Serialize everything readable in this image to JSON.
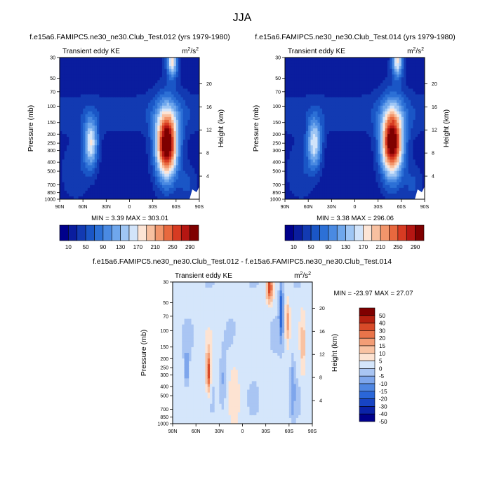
{
  "figure": {
    "title": "JJA"
  },
  "panels": [
    {
      "title": "f.e15a6.FAMIPC5.ne30_ne30.Club_Test.012 (yrs 1979-1980)",
      "subtitle": "Transient eddy KE",
      "units_base": "m",
      "units_exp1": "2",
      "units_mid": "/s",
      "units_exp2": "2",
      "ylabel": "Pressure (mb)",
      "ylabel_right": "Height (km)",
      "stats": "MIN =  3.39  MAX = 303.01"
    },
    {
      "title": "f.e15a6.FAMIPC5.ne30_ne30.Club_Test.014 (yrs 1979-1980)",
      "subtitle": "Transient eddy KE",
      "units_base": "m",
      "units_exp1": "2",
      "units_mid": "/s",
      "units_exp2": "2",
      "ylabel": "Pressure (mb)",
      "ylabel_right": "Height (km)",
      "stats": "MIN =  3.38  MAX = 296.06"
    },
    {
      "title": "f.e15a6.FAMIPC5.ne30_ne30.Club_Test.012 - f.e15a6.FAMIPC5.ne30_ne30.Club_Test.014",
      "subtitle": "Transient eddy KE",
      "units_base": "m",
      "units_exp1": "2",
      "units_mid": "/s",
      "units_exp2": "2",
      "ylabel": "Pressure (mb)",
      "ylabel_right": "Height (km)",
      "stats": "MIN = -23.97  MAX =  27.07"
    }
  ],
  "chart_data": [
    {
      "type": "heatmap",
      "title": "f.e15a6.FAMIPC5.ne30_ne30.Club_Test.012 (yrs 1979-1980)",
      "x_ticks": [
        "90N",
        "60N",
        "30N",
        "0",
        "30S",
        "60S",
        "90S"
      ],
      "y_ticks": [
        "30",
        "50",
        "70",
        "100",
        "150",
        "200",
        "250",
        "300",
        "400",
        "500",
        "700",
        "850",
        "1000"
      ],
      "y_ticks_right": [
        "20",
        "16",
        "12",
        "8",
        "4"
      ],
      "xlabel": "",
      "ylabel": "Pressure (mb)",
      "ylabel_right": "Height (km)",
      "ylim": [
        1000,
        30
      ],
      "log_y": true,
      "min": 3.39,
      "max": 303.01,
      "features": [
        {
          "lat": 50,
          "p": 250,
          "peak": 150,
          "sx": 9,
          "sy": 0.17
        },
        {
          "lat": -48,
          "p": 270,
          "peak": 303,
          "sx": 14,
          "sy": 0.23
        },
        {
          "lat": -55,
          "p": 32,
          "peak": 165,
          "sx": 7,
          "sy": 0.12
        }
      ]
    },
    {
      "type": "heatmap",
      "title": "f.e15a6.FAMIPC5.ne30_ne30.Club_Test.014 (yrs 1979-1980)",
      "x_ticks": [
        "90N",
        "60N",
        "30N",
        "0",
        "30S",
        "60S",
        "90S"
      ],
      "y_ticks": [
        "30",
        "50",
        "70",
        "100",
        "150",
        "200",
        "250",
        "300",
        "400",
        "500",
        "700",
        "850",
        "1000"
      ],
      "y_ticks_right": [
        "20",
        "16",
        "12",
        "8",
        "4"
      ],
      "xlabel": "",
      "ylabel": "Pressure (mb)",
      "ylabel_right": "Height (km)",
      "ylim": [
        1000,
        30
      ],
      "log_y": true,
      "min": 3.38,
      "max": 296.06,
      "features": [
        {
          "lat": 52,
          "p": 250,
          "peak": 145,
          "sx": 9,
          "sy": 0.17
        },
        {
          "lat": -48,
          "p": 260,
          "peak": 296,
          "sx": 14,
          "sy": 0.23
        },
        {
          "lat": -55,
          "p": 32,
          "peak": 160,
          "sx": 7,
          "sy": 0.12
        }
      ]
    },
    {
      "type": "heatmap",
      "title": "f.e15a6.FAMIPC5.ne30_ne30.Club_Test.012 - f.e15a6.FAMIPC5.ne30_ne30.Club_Test.014",
      "x_ticks": [
        "90N",
        "60N",
        "30N",
        "0",
        "30S",
        "60S",
        "90S"
      ],
      "y_ticks": [
        "30",
        "50",
        "70",
        "100",
        "150",
        "200",
        "250",
        "300",
        "400",
        "500",
        "700",
        "850",
        "1000"
      ],
      "y_ticks_right": [
        "20",
        "16",
        "12",
        "8",
        "4"
      ],
      "xlabel": "",
      "ylabel": "Pressure (mb)",
      "ylabel_right": "Height (km)",
      "ylim": [
        1000,
        30
      ],
      "log_y": true,
      "min": -23.97,
      "max": 27.07,
      "features": [
        {
          "lat": 44,
          "p": 280,
          "peak": 27,
          "sx": 3,
          "sy": 0.15
        },
        {
          "lat": 72,
          "p": 260,
          "peak": -15,
          "sx": 3,
          "sy": 0.12
        },
        {
          "lat": 25,
          "p": 350,
          "peak": -8,
          "sx": 4,
          "sy": 0.2
        },
        {
          "lat": -35,
          "p": 35,
          "peak": 26,
          "sx": 4,
          "sy": 0.1
        },
        {
          "lat": -50,
          "p": 60,
          "peak": -22,
          "sx": 3,
          "sy": 0.2
        },
        {
          "lat": -58,
          "p": 80,
          "peak": 15,
          "sx": 3,
          "sy": 0.15
        },
        {
          "lat": -65,
          "p": 400,
          "peak": -10,
          "sx": 3,
          "sy": 0.25
        },
        {
          "lat": -78,
          "p": 150,
          "peak": 10,
          "sx": 3,
          "sy": 0.25
        },
        {
          "lat": 10,
          "p": 500,
          "peak": 5,
          "sx": 6,
          "sy": 0.3
        }
      ]
    }
  ],
  "colorbars": [
    {
      "levels": [
        10,
        30,
        50,
        70,
        90,
        110,
        130,
        150,
        170,
        190,
        210,
        230,
        250,
        270,
        290
      ],
      "labels": [
        "10",
        "50",
        "90",
        "130",
        "170",
        "210",
        "250",
        "290"
      ],
      "colors": [
        "#00008b",
        "#0a1d9e",
        "#123ab2",
        "#1a56c6",
        "#2c70d6",
        "#4a8ae2",
        "#6fa7ec",
        "#9fc6f4",
        "#d2e4fa",
        "#fde5d6",
        "#f8c0a0",
        "#f2956b",
        "#e8683e",
        "#d73b22",
        "#b51612",
        "#7f0000"
      ]
    },
    {
      "levels": [
        10,
        30,
        50,
        70,
        90,
        110,
        130,
        150,
        170,
        190,
        210,
        230,
        250,
        270,
        290
      ],
      "labels": [
        "10",
        "50",
        "90",
        "130",
        "170",
        "210",
        "250",
        "290"
      ],
      "colors": [
        "#00008b",
        "#0a1d9e",
        "#123ab2",
        "#1a56c6",
        "#2c70d6",
        "#4a8ae2",
        "#6fa7ec",
        "#9fc6f4",
        "#d2e4fa",
        "#fde5d6",
        "#f8c0a0",
        "#f2956b",
        "#e8683e",
        "#d73b22",
        "#b51612",
        "#7f0000"
      ]
    },
    {
      "levels": [
        -50,
        -40,
        -30,
        -20,
        -15,
        -10,
        -5,
        0,
        5,
        10,
        15,
        20,
        30,
        40,
        50
      ],
      "labels": [
        "50",
        "40",
        "30",
        "20",
        "15",
        "10",
        "5",
        "0",
        "-5",
        "-10",
        "-15",
        "-20",
        "-30",
        "-40",
        "-50"
      ],
      "colors": [
        "#00008b",
        "#0a22a8",
        "#1744c4",
        "#2a66d8",
        "#4f86e2",
        "#7ea6ec",
        "#a9c5f3",
        "#d5e6fb",
        "#fde3d2",
        "#f9c2a2",
        "#f39d76",
        "#e9744a",
        "#d84a28",
        "#b52010",
        "#7f0000"
      ]
    }
  ]
}
